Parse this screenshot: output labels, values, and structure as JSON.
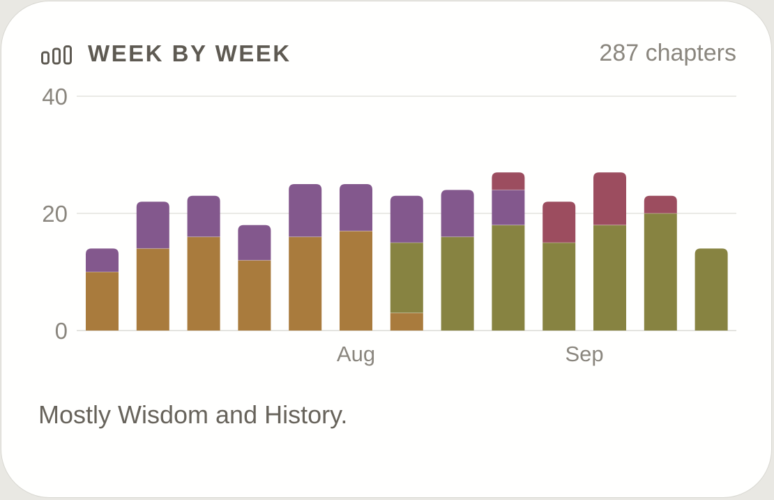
{
  "widget": {
    "title": "WEEK BY WEEK",
    "count_label": "287 chapters",
    "caption": "Mostly Wisdom and History.",
    "icon": "bar-chart-icon"
  },
  "chart_data": {
    "type": "bar",
    "stacked": true,
    "ylim": [
      0,
      40
    ],
    "yticks": [
      0,
      20,
      40
    ],
    "grid": true,
    "weeks": 13,
    "month_labels": [
      {
        "label": "Aug",
        "week_index": 5
      },
      {
        "label": "Sep",
        "week_index": 9.5
      }
    ],
    "series": [
      {
        "color": "#a97b3d",
        "values": [
          10,
          14,
          16,
          12,
          16,
          17,
          3,
          0,
          0,
          0,
          0,
          0,
          0
        ]
      },
      {
        "color": "#878341",
        "values": [
          0,
          0,
          0,
          0,
          0,
          0,
          12,
          16,
          18,
          15,
          18,
          20,
          14
        ]
      },
      {
        "color": "#83588d",
        "values": [
          4,
          8,
          7,
          6,
          9,
          8,
          8,
          8,
          6,
          0,
          0,
          0,
          0
        ]
      },
      {
        "color": "#9c4d5f",
        "values": [
          0,
          0,
          0,
          0,
          0,
          0,
          0,
          0,
          3,
          7,
          9,
          3,
          0
        ]
      }
    ]
  }
}
